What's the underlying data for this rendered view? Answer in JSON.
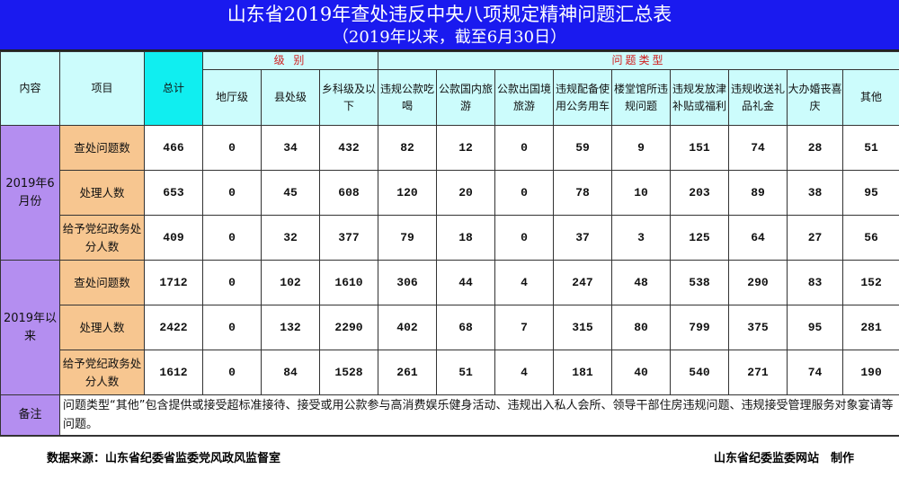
{
  "title": {
    "main": "山东省2019年查处违反中央八项规定精神问题汇总表",
    "sub": "（2019年以来，截至6月30日）"
  },
  "header": {
    "content": "内容",
    "item": "项目",
    "total": "总计",
    "group_level": "级 别",
    "group_type": "问题类型",
    "columns": [
      "地厅级",
      "县处级",
      "乡科级及以下",
      "违规公款吃喝",
      "公款国内旅游",
      "公款出国境旅游",
      "违规配备使用公务用车",
      "楼堂馆所违规问题",
      "违规发放津补贴或福利",
      "违规收送礼品礼金",
      "大办婚丧喜庆",
      "其他"
    ]
  },
  "sections": [
    {
      "label": "2019年6月份",
      "rows": [
        {
          "item": "查处问题数",
          "total": 466,
          "values": [
            0,
            34,
            432,
            82,
            12,
            0,
            59,
            9,
            151,
            74,
            28,
            51
          ]
        },
        {
          "item": "处理人数",
          "total": 653,
          "values": [
            0,
            45,
            608,
            120,
            20,
            0,
            78,
            10,
            203,
            89,
            38,
            95
          ]
        },
        {
          "item": "给予党纪政务处分人数",
          "total": 409,
          "values": [
            0,
            32,
            377,
            79,
            18,
            0,
            37,
            3,
            125,
            64,
            27,
            56
          ]
        }
      ]
    },
    {
      "label": "2019年以来",
      "rows": [
        {
          "item": "查处问题数",
          "total": 1712,
          "values": [
            0,
            102,
            1610,
            306,
            44,
            4,
            247,
            48,
            538,
            290,
            83,
            152
          ]
        },
        {
          "item": "处理人数",
          "total": 2422,
          "values": [
            0,
            132,
            2290,
            402,
            68,
            7,
            315,
            80,
            799,
            375,
            95,
            281
          ]
        },
        {
          "item": "给予党纪政务处分人数",
          "total": 1612,
          "values": [
            0,
            84,
            1528,
            261,
            51,
            4,
            181,
            40,
            540,
            271,
            74,
            190
          ]
        }
      ]
    }
  ],
  "note": {
    "label": "备注",
    "text": "问题类型“其他”包含提供或接受超标准接待、接受或用公款参与高消费娱乐健身活动、违规出入私人会所、领导干部住房违规问题、违规接受管理服务对象宴请等问题。"
  },
  "footer": {
    "source": "数据来源：山东省纪委省监委党风政风监督室",
    "credit": "山东省纪委监委网站　制作"
  },
  "colors": {
    "title_bg": "#1a1aef",
    "header_bg": "#ccfcfc",
    "total_bg": "#10eef0",
    "section_bg": "#b48ef0",
    "item_bg": "#f7c690",
    "group_text": "#d02020"
  }
}
